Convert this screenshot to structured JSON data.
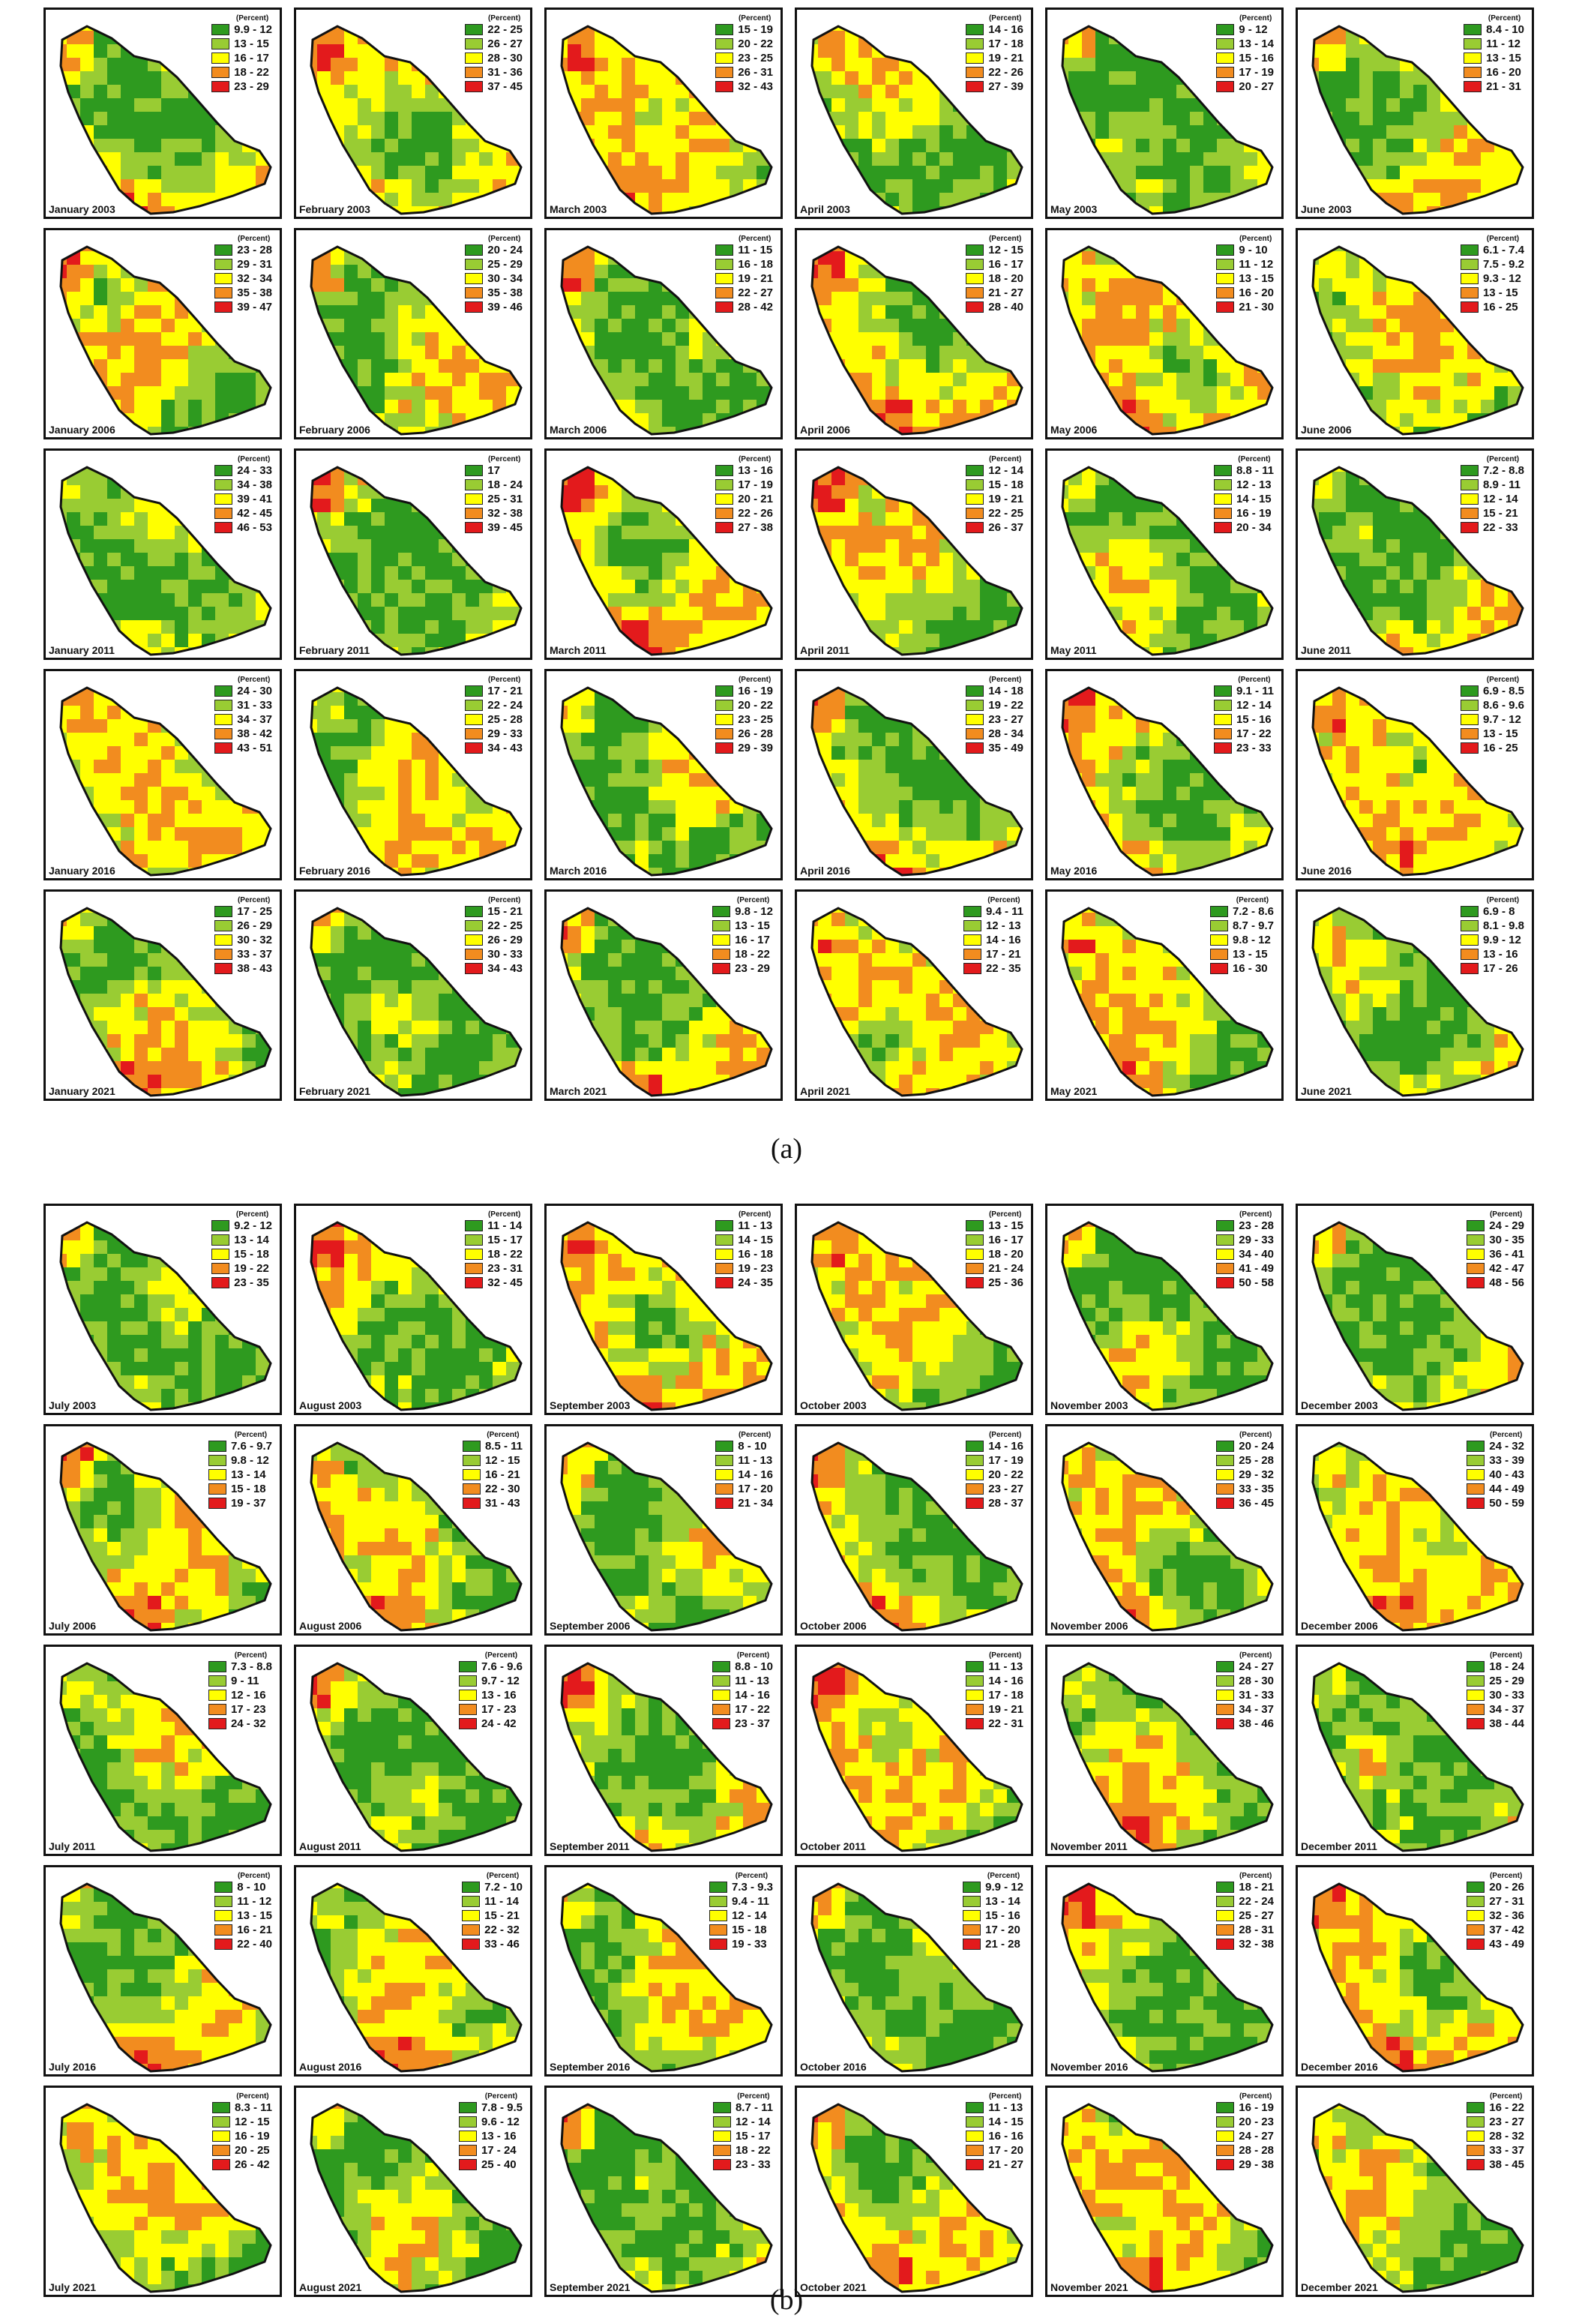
{
  "legend_title": "(Percent)",
  "colors": {
    "c1": "#2e9a1f",
    "c2": "#99cc33",
    "c3": "#ffff00",
    "c4": "#f28c1f",
    "c5": "#e31a1c",
    "outline": "#111111",
    "frame": "#111111"
  },
  "groups": [
    {
      "label": "(a)",
      "panels": [
        {
          "caption": "January 2003",
          "legend": [
            "9.9 - 12",
            "13 - 15",
            "16 - 17",
            "18 - 22",
            "23 - 29"
          ]
        },
        {
          "caption": "February 2003",
          "legend": [
            "22 - 25",
            "26 - 27",
            "28 - 30",
            "31 - 36",
            "37 - 45"
          ]
        },
        {
          "caption": "March 2003",
          "legend": [
            "15 - 19",
            "20 - 22",
            "23 - 25",
            "26 - 31",
            "32 - 43"
          ]
        },
        {
          "caption": "April 2003",
          "legend": [
            "14 - 16",
            "17 - 18",
            "19 - 21",
            "22 - 26",
            "27 - 39"
          ]
        },
        {
          "caption": "May 2003",
          "legend": [
            "9 - 12",
            "13 - 14",
            "15 - 16",
            "17 - 19",
            "20 - 27"
          ]
        },
        {
          "caption": "June 2003",
          "legend": [
            "8.4 - 10",
            "11 - 12",
            "13 - 15",
            "16 - 20",
            "21 - 31"
          ]
        },
        {
          "caption": "January 2006",
          "legend": [
            "23 - 28",
            "29 - 31",
            "32 - 34",
            "35 - 38",
            "39 - 47"
          ]
        },
        {
          "caption": "February 2006",
          "legend": [
            "20 - 24",
            "25 - 29",
            "30 - 34",
            "35 - 38",
            "39 - 46"
          ]
        },
        {
          "caption": "March 2006",
          "legend": [
            "11 - 15",
            "16 - 18",
            "19 - 21",
            "22 - 27",
            "28 - 42"
          ]
        },
        {
          "caption": "April 2006",
          "legend": [
            "12 - 15",
            "16 - 17",
            "18 - 20",
            "21 - 27",
            "28 - 40"
          ]
        },
        {
          "caption": "May 2006",
          "legend": [
            "9 - 10",
            "11 - 12",
            "13 - 15",
            "16 - 20",
            "21 - 30"
          ]
        },
        {
          "caption": "June 2006",
          "legend": [
            "6.1 - 7.4",
            "7.5 - 9.2",
            "9.3 - 12",
            "13 - 15",
            "16 - 25"
          ]
        },
        {
          "caption": "January 2011",
          "legend": [
            "24 - 33",
            "34 - 38",
            "39 - 41",
            "42 - 45",
            "46 - 53"
          ]
        },
        {
          "caption": "February 2011",
          "legend": [
            "17",
            "18 - 24",
            "25 - 31",
            "32 - 38",
            "39 - 45"
          ]
        },
        {
          "caption": "March 2011",
          "legend": [
            "13 - 16",
            "17 - 19",
            "20 - 21",
            "22 - 26",
            "27 - 38"
          ]
        },
        {
          "caption": "April 2011",
          "legend": [
            "12 - 14",
            "15 - 18",
            "19 - 21",
            "22 - 25",
            "26 - 37"
          ]
        },
        {
          "caption": "May 2011",
          "legend": [
            "8.8 - 11",
            "12 - 13",
            "14 - 15",
            "16 - 19",
            "20 - 34"
          ]
        },
        {
          "caption": "June 2011",
          "legend": [
            "7.2 - 8.8",
            "8.9 - 11",
            "12 - 14",
            "15 - 21",
            "22 - 33"
          ]
        },
        {
          "caption": "January 2016",
          "legend": [
            "24 - 30",
            "31 - 33",
            "34 - 37",
            "38 - 42",
            "43 - 51"
          ]
        },
        {
          "caption": "February 2016",
          "legend": [
            "17 - 21",
            "22 - 24",
            "25 - 28",
            "29 - 33",
            "34 - 43"
          ]
        },
        {
          "caption": "March 2016",
          "legend": [
            "16 - 19",
            "20 - 22",
            "23 - 25",
            "26 - 28",
            "29 - 39"
          ]
        },
        {
          "caption": "April 2016",
          "legend": [
            "14 - 18",
            "19 - 22",
            "23 - 27",
            "28 - 34",
            "35 - 49"
          ]
        },
        {
          "caption": "May 2016",
          "legend": [
            "9.1 - 11",
            "12 - 14",
            "15 - 16",
            "17 - 22",
            "23 - 33"
          ]
        },
        {
          "caption": "June 2016",
          "legend": [
            "6.9 - 8.5",
            "8.6 - 9.6",
            "9.7 - 12",
            "13 - 15",
            "16 - 25"
          ]
        },
        {
          "caption": "January 2021",
          "legend": [
            "17 - 25",
            "26 - 29",
            "30 - 32",
            "33 - 37",
            "38 - 43"
          ]
        },
        {
          "caption": "February 2021",
          "legend": [
            "15 - 21",
            "22 - 25",
            "26 - 29",
            "30 - 33",
            "34 - 43"
          ]
        },
        {
          "caption": "March 2021",
          "legend": [
            "9.8 - 12",
            "13 - 15",
            "16 - 17",
            "18 - 22",
            "23 - 29"
          ]
        },
        {
          "caption": "April 2021",
          "legend": [
            "9.4 - 11",
            "12 - 13",
            "14 - 16",
            "17 - 21",
            "22 - 35"
          ]
        },
        {
          "caption": "May 2021",
          "legend": [
            "7.2 - 8.6",
            "8.7 - 9.7",
            "9.8 - 12",
            "13 - 15",
            "16 - 30"
          ]
        },
        {
          "caption": "June 2021",
          "legend": [
            "6.9 - 8",
            "8.1 - 9.8",
            "9.9 - 12",
            "13 - 16",
            "17 - 26"
          ]
        }
      ]
    },
    {
      "label": "(b)",
      "panels": [
        {
          "caption": "July 2003",
          "legend": [
            "9.2 - 12",
            "13 - 14",
            "15 - 18",
            "19 - 22",
            "23 - 35"
          ]
        },
        {
          "caption": "August 2003",
          "legend": [
            "11 - 14",
            "15 - 17",
            "18 - 22",
            "23 - 31",
            "32 - 45"
          ]
        },
        {
          "caption": "September 2003",
          "legend": [
            "11 - 13",
            "14 - 15",
            "16 - 18",
            "19 - 23",
            "24 - 35"
          ]
        },
        {
          "caption": "October 2003",
          "legend": [
            "13 - 15",
            "16 - 17",
            "18 - 20",
            "21 - 24",
            "25 - 36"
          ]
        },
        {
          "caption": "November 2003",
          "legend": [
            "23 - 28",
            "29 - 33",
            "34 - 40",
            "41 - 49",
            "50 - 58"
          ]
        },
        {
          "caption": "December 2003",
          "legend": [
            "24 - 29",
            "30 - 35",
            "36 - 41",
            "42 - 47",
            "48 - 56"
          ]
        },
        {
          "caption": "July 2006",
          "legend": [
            "7.6 - 9.7",
            "9.8 - 12",
            "13 - 14",
            "15 - 18",
            "19 - 37"
          ]
        },
        {
          "caption": "August 2006",
          "legend": [
            "8.5 - 11",
            "12 - 15",
            "16 - 21",
            "22 - 30",
            "31 - 43"
          ]
        },
        {
          "caption": "September 2006",
          "legend": [
            "8 - 10",
            "11 - 13",
            "14 - 16",
            "17 - 20",
            "21 - 34"
          ]
        },
        {
          "caption": "October 2006",
          "legend": [
            "14 - 16",
            "17 - 19",
            "20 - 22",
            "23 - 27",
            "28 - 37"
          ]
        },
        {
          "caption": "November 2006",
          "legend": [
            "20 - 24",
            "25 - 28",
            "29 - 32",
            "33 - 35",
            "36 - 45"
          ]
        },
        {
          "caption": "December 2006",
          "legend": [
            "24 - 32",
            "33 - 39",
            "40 - 43",
            "44 - 49",
            "50 - 59"
          ]
        },
        {
          "caption": "July 2011",
          "legend": [
            "7.3 - 8.8",
            "9 - 11",
            "12 - 16",
            "17 - 23",
            "24 - 32"
          ]
        },
        {
          "caption": "August 2011",
          "legend": [
            "7.6 - 9.6",
            "9.7 - 12",
            "13 - 16",
            "17 - 23",
            "24 - 42"
          ]
        },
        {
          "caption": "September 2011",
          "legend": [
            "8.8 - 10",
            "11 - 13",
            "14 - 16",
            "17 - 22",
            "23 - 37"
          ]
        },
        {
          "caption": "October 2011",
          "legend": [
            "11 - 13",
            "14 - 16",
            "17 - 18",
            "19 - 21",
            "22 - 31"
          ]
        },
        {
          "caption": "November 2011",
          "legend": [
            "24 - 27",
            "28 - 30",
            "31 - 33",
            "34 - 37",
            "38 - 46"
          ]
        },
        {
          "caption": "December 2011",
          "legend": [
            "18 - 24",
            "25 - 29",
            "30 - 33",
            "34 - 37",
            "38 - 44"
          ]
        },
        {
          "caption": "July 2016",
          "legend": [
            "8 - 10",
            "11 - 12",
            "13 - 15",
            "16 - 21",
            "22 - 40"
          ]
        },
        {
          "caption": "August 2016",
          "legend": [
            "7.2 - 10",
            "11 - 14",
            "15 - 21",
            "22 - 32",
            "33 - 46"
          ]
        },
        {
          "caption": "September 2016",
          "legend": [
            "7.3 - 9.3",
            "9.4 - 11",
            "12 - 14",
            "15 - 18",
            "19 - 33"
          ]
        },
        {
          "caption": "October 2016",
          "legend": [
            "9.9 - 12",
            "13 - 14",
            "15 - 16",
            "17 - 20",
            "21 - 28"
          ]
        },
        {
          "caption": "November 2016",
          "legend": [
            "18 - 21",
            "22 - 24",
            "25 - 27",
            "28 - 31",
            "32 - 38"
          ]
        },
        {
          "caption": "December 2016",
          "legend": [
            "20 - 26",
            "27 - 31",
            "32 - 36",
            "37 - 42",
            "43 - 49"
          ]
        },
        {
          "caption": "July 2021",
          "legend": [
            "8.3 - 11",
            "12 - 15",
            "16 - 19",
            "20 - 25",
            "26 - 42"
          ]
        },
        {
          "caption": "August 2021",
          "legend": [
            "7.8 - 9.5",
            "9.6 - 12",
            "13 - 16",
            "17 - 24",
            "25 - 40"
          ]
        },
        {
          "caption": "September 2021",
          "legend": [
            "8.7 - 11",
            "12 - 14",
            "15 - 17",
            "18 - 22",
            "23 - 33"
          ]
        },
        {
          "caption": "October 2021",
          "legend": [
            "11 - 13",
            "14 - 15",
            "16 - 16",
            "17 - 20",
            "21 - 27"
          ]
        },
        {
          "caption": "November 2021",
          "legend": [
            "16 - 19",
            "20 - 23",
            "24 - 27",
            "28 - 28",
            "29 - 38"
          ]
        },
        {
          "caption": "December 2021",
          "legend": [
            "16 - 22",
            "23 - 27",
            "28 - 32",
            "33 - 37",
            "38 - 45"
          ]
        }
      ]
    }
  ]
}
